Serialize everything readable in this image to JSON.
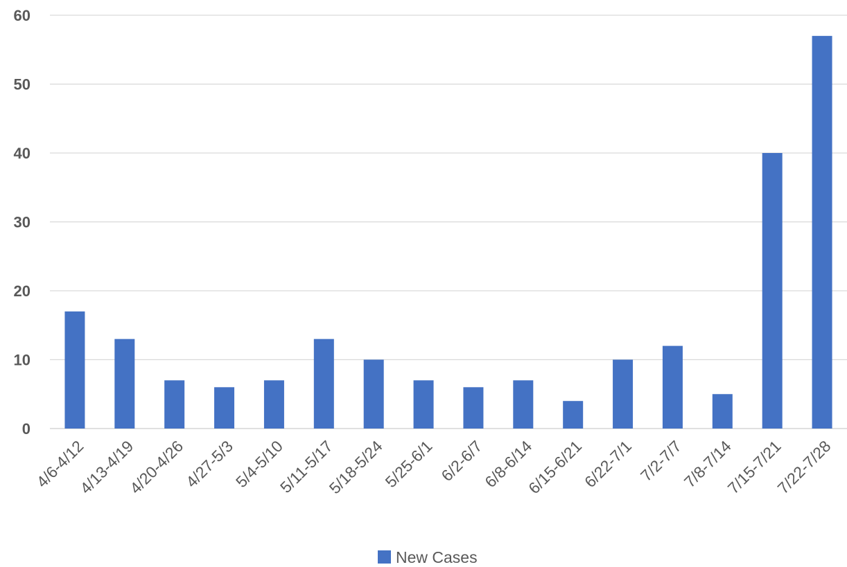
{
  "chart_data": {
    "type": "bar",
    "title": "",
    "xlabel": "",
    "ylabel": "",
    "ylim": [
      0,
      60
    ],
    "yticks": [
      0,
      10,
      20,
      30,
      40,
      50,
      60
    ],
    "grid": true,
    "legend_position": "bottom",
    "categories": [
      "4/6-4/12",
      "4/13-4/19",
      "4/20-4/26",
      "4/27-5/3",
      "5/4-5/10",
      "5/11-5/17",
      "5/18-5/24",
      "5/25-6/1",
      "6/2-6/7",
      "6/8-6/14",
      "6/15-6/21",
      "6/22-7/1",
      "7/2-7/7",
      "7/8-7/14",
      "7/15-7/21",
      "7/22-7/28"
    ],
    "series": [
      {
        "name": "New Cases",
        "color": "#4472C4",
        "values": [
          17,
          13,
          7,
          6,
          7,
          13,
          10,
          7,
          6,
          7,
          4,
          10,
          12,
          5,
          40,
          57
        ]
      }
    ]
  },
  "colors": {
    "gridline": "#D9D9D9",
    "axis_text": "#595959"
  }
}
